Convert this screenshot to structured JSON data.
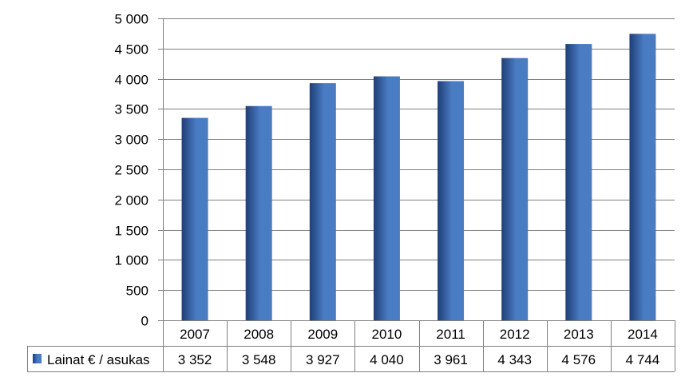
{
  "chart_data": {
    "type": "bar",
    "categories": [
      "2007",
      "2008",
      "2009",
      "2010",
      "2011",
      "2012",
      "2013",
      "2014"
    ],
    "series": [
      {
        "name": "Lainat € / asukas",
        "values": [
          3352,
          3548,
          3927,
          4040,
          3961,
          4343,
          4576,
          4744
        ],
        "labels": [
          "3 352",
          "3 548",
          "3 927",
          "4 040",
          "3 961",
          "4 343",
          "4 576",
          "4 744"
        ]
      }
    ],
    "y_ticks": [
      "0",
      "500",
      "1 000",
      "1 500",
      "2 000",
      "2 500",
      "3 000",
      "3 500",
      "4 000",
      "4 500",
      "5 000"
    ],
    "ylim": [
      0,
      5000
    ],
    "y_step": 500,
    "grid": true,
    "legend": "data-table-left",
    "colors": {
      "bar_dark": "#1f3f75",
      "bar_light": "#4a7cc4",
      "grid": "#7f7f7f",
      "axis": "#7f7f7f"
    }
  }
}
